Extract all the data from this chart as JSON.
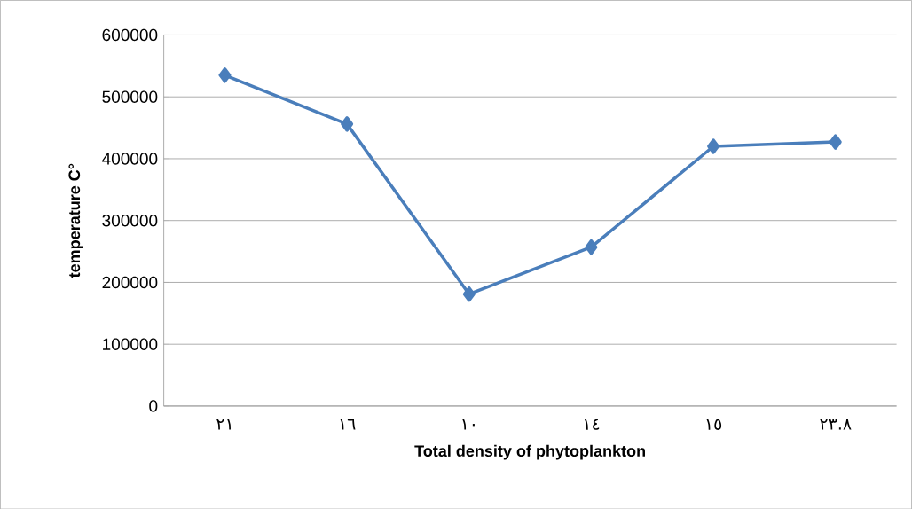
{
  "chart_data": {
    "type": "line",
    "xlabel": "Total density of phytoplankton",
    "ylabel": "temperature C°",
    "categories": [
      "٢١",
      "١٦",
      "١٠",
      "١٤",
      "١٥",
      "٢٣.٨"
    ],
    "series": [
      {
        "color": "#4a7ebb",
        "values": [
          535000,
          456000,
          181000,
          257000,
          420000,
          427000
        ]
      }
    ],
    "ylim": [
      0,
      600000
    ],
    "yticks": [
      0,
      100000,
      200000,
      300000,
      400000,
      500000,
      600000
    ],
    "grid": "y",
    "marker": "diamond",
    "line_style": "solid"
  }
}
